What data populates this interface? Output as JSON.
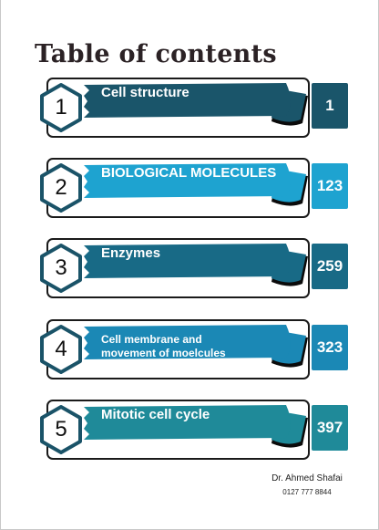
{
  "title": "Table of contents",
  "entries": [
    {
      "number": "1",
      "label": "Cell structure",
      "page": "1",
      "color": "#1a556a"
    },
    {
      "number": "2",
      "label": "BIOLOGICAL MOLECULES",
      "page": "123",
      "color": "#1ea3d0"
    },
    {
      "number": "3",
      "label": "Enzymes",
      "page": "259",
      "color": "#186a86"
    },
    {
      "number": "4",
      "label": "Cell membrane and movement of moelcules",
      "page": "323",
      "color": "#1b88b5"
    },
    {
      "number": "5",
      "label": "Mitotic cell cycle",
      "page": "397",
      "color": "#1f8a99"
    }
  ],
  "footer": {
    "author": "Dr. Ahmed Shafai",
    "phone": "0127 777 8844"
  },
  "colors": {
    "outline": "#1a1a1a",
    "hex_border": "#1a5368",
    "title": "#2b2225"
  }
}
